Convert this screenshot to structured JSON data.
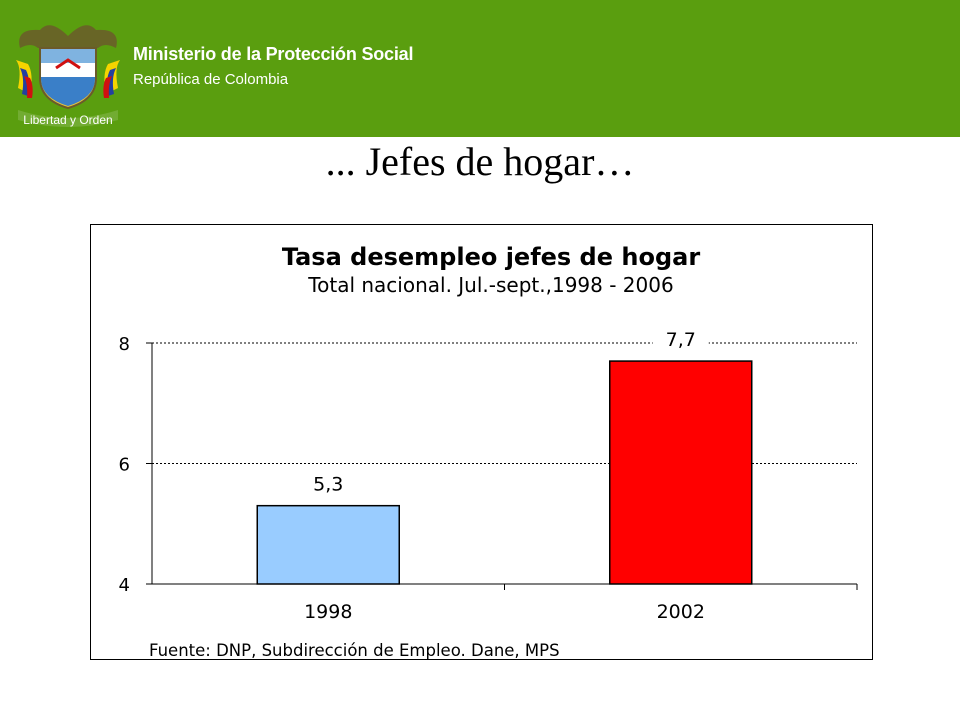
{
  "header": {
    "ministry": "Ministerio de la Protección Social",
    "country": "República de Colombia",
    "motto": "Libertad y Orden",
    "color": "#5a9e0f"
  },
  "slide": {
    "title": "... Jefes de hogar…"
  },
  "chart_data": {
    "type": "bar",
    "title": "Tasa desempleo jefes de hogar",
    "subtitle": "Total nacional. Jul.-sept.,1998 - 2006",
    "categories": [
      "1998",
      "2002"
    ],
    "values": [
      5.3,
      7.7
    ],
    "value_labels": [
      "5,3",
      "7,7"
    ],
    "colors": [
      "#99ccff",
      "#ff0000"
    ],
    "ylim": [
      4,
      8
    ],
    "yticks": [
      4,
      6,
      8
    ],
    "ytick_labels": [
      "4",
      "6",
      "8"
    ],
    "grid": true,
    "source": "Fuente: DNP, Subdirección de Empleo. Dane, MPS"
  }
}
